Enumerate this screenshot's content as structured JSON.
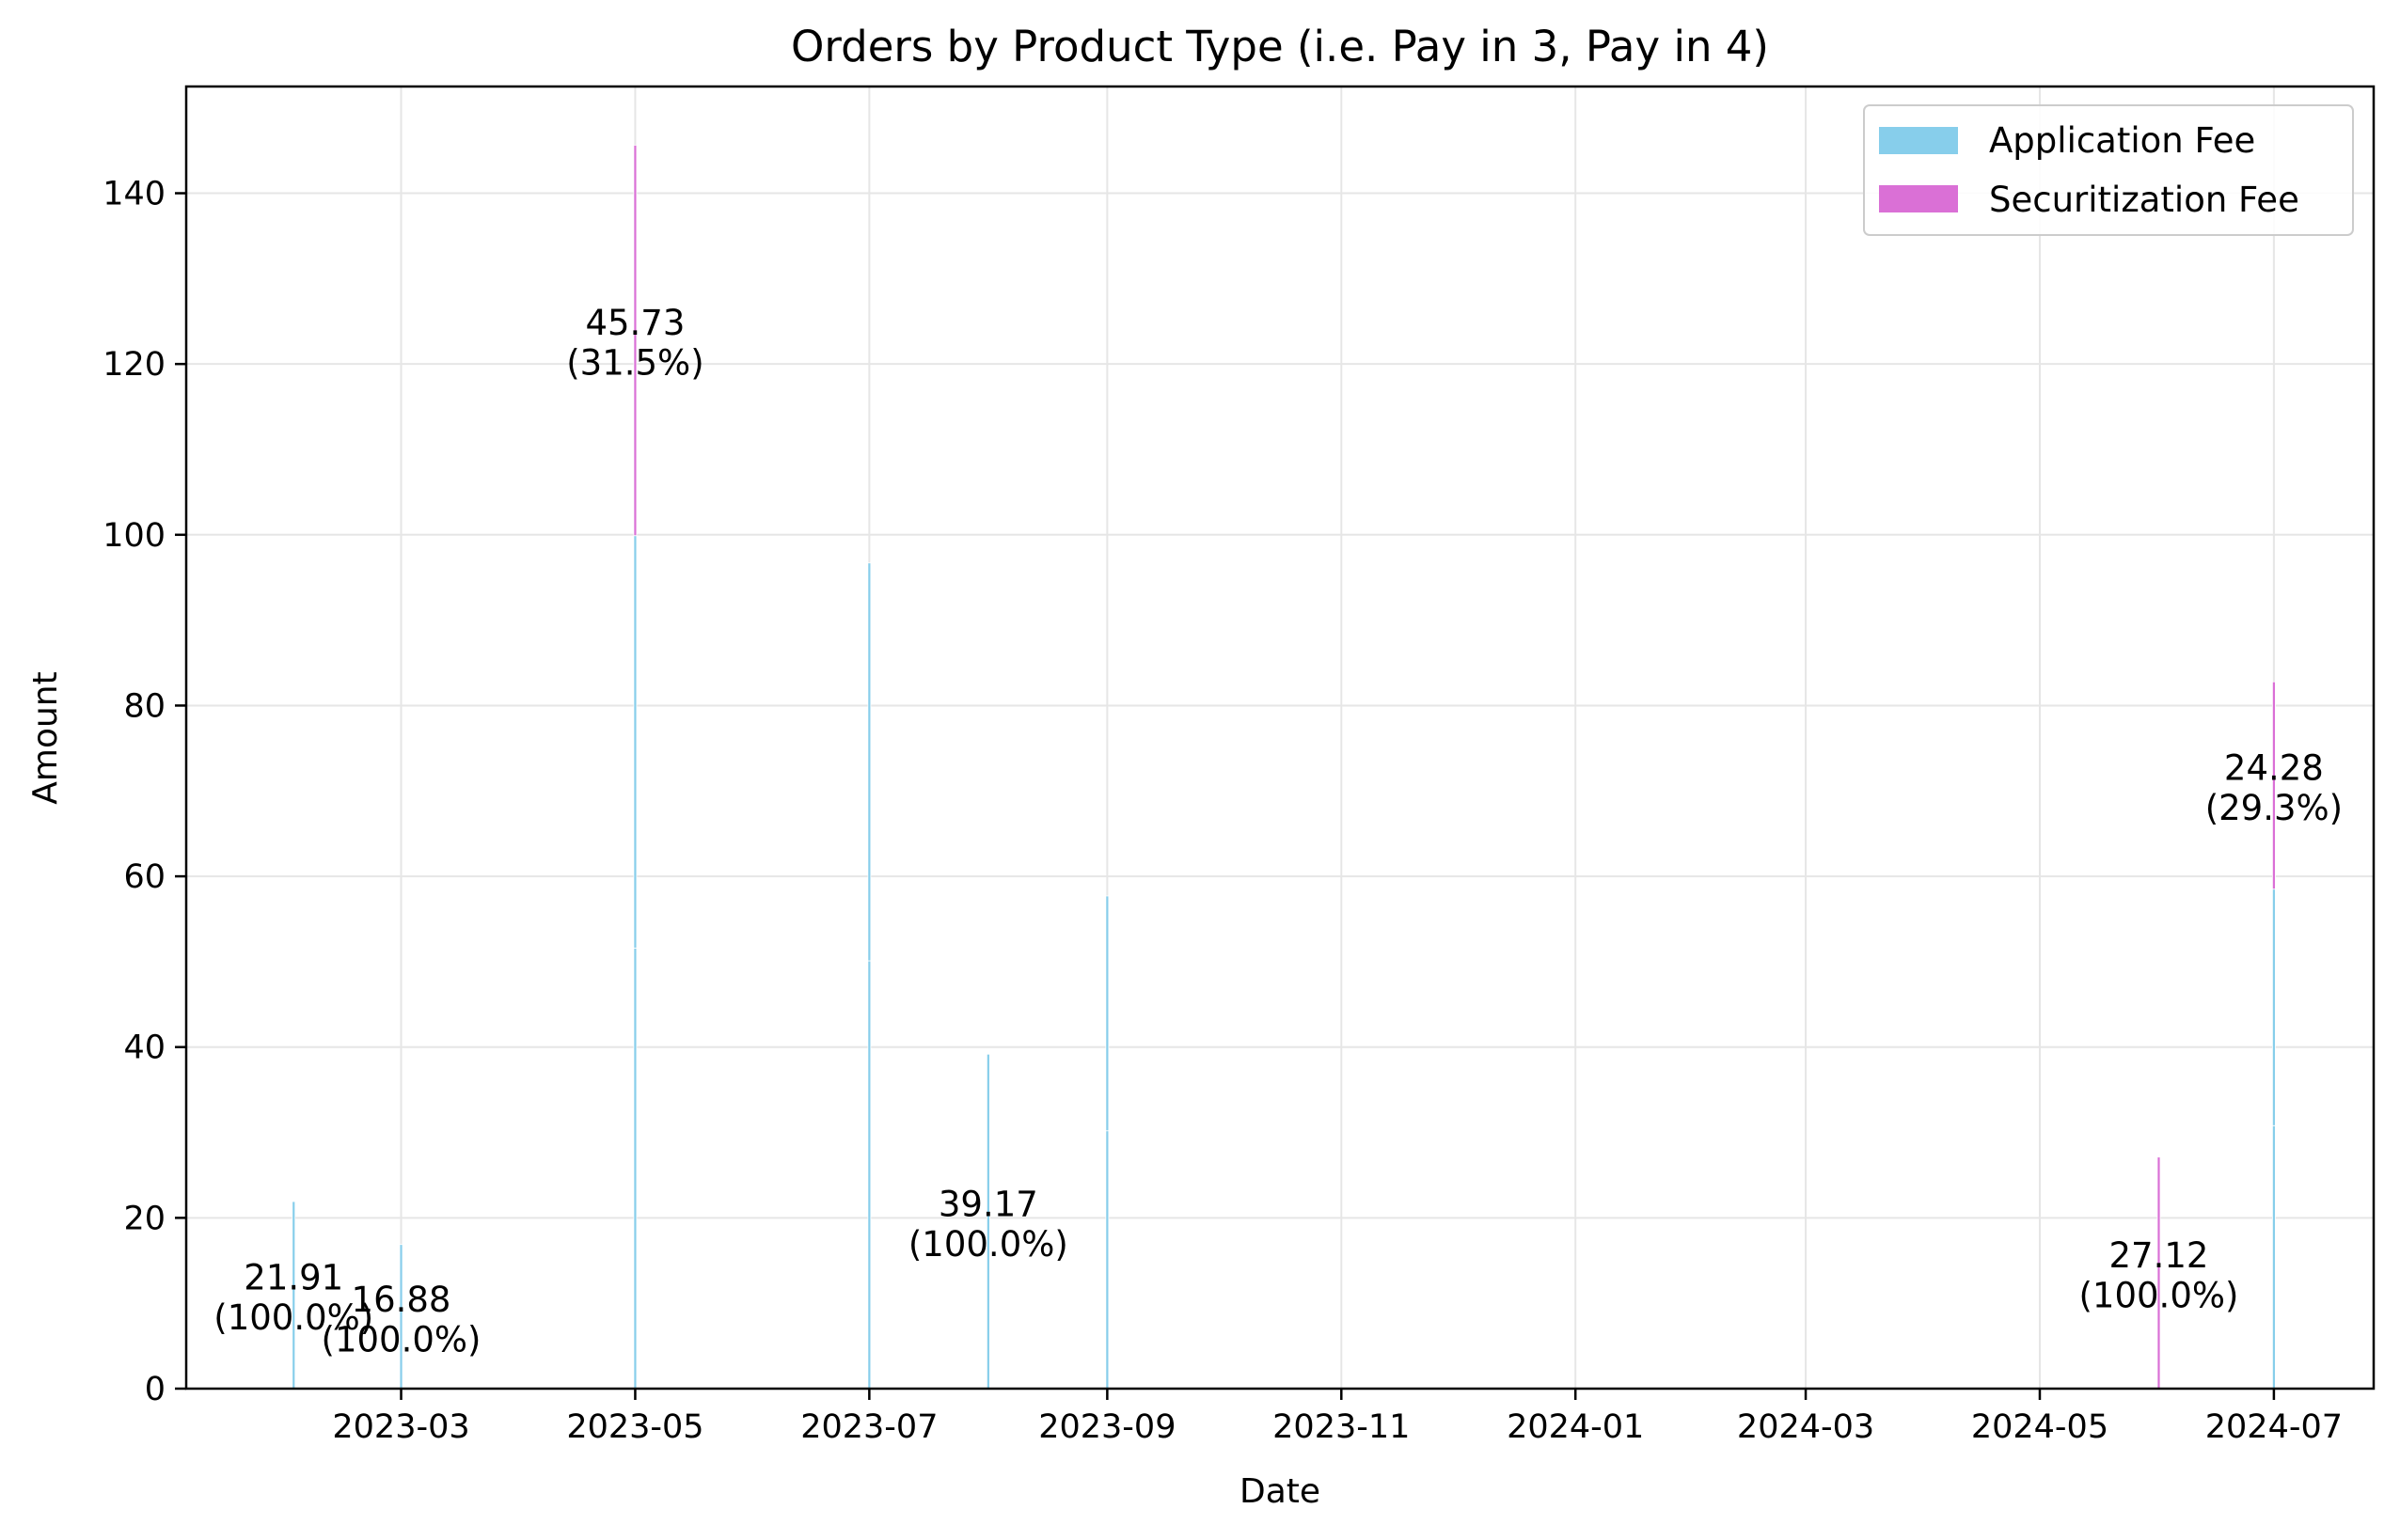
{
  "chart_data": {
    "type": "bar",
    "stacked": true,
    "title": "Orders by Product Type (i.e. Pay in 3, Pay in 4)",
    "xlabel": "Date",
    "ylabel": "Amount",
    "x_axis": {
      "type": "date",
      "range": [
        "2023-01-04",
        "2024-07-27"
      ],
      "ticks": [
        "2023-03-01",
        "2023-05-01",
        "2023-07-01",
        "2023-09-01",
        "2023-11-01",
        "2024-01-01",
        "2024-03-01",
        "2024-05-01",
        "2024-07-01"
      ],
      "tick_labels": [
        "2023-03",
        "2023-05",
        "2023-07",
        "2023-09",
        "2023-11",
        "2024-01",
        "2024-03",
        "2024-05",
        "2024-07"
      ]
    },
    "y_axis": {
      "range": [
        0,
        152.5
      ],
      "ticks": [
        0,
        20,
        40,
        60,
        80,
        100,
        120,
        140
      ],
      "tick_labels": [
        "0",
        "20",
        "40",
        "60",
        "80",
        "100",
        "120",
        "140"
      ]
    },
    "grid": true,
    "legend": {
      "position": "top-right"
    },
    "series": [
      {
        "name": "Application Fee",
        "color": "#87ceeb",
        "segments": [
          {
            "date": "2023-02-01",
            "values": [
              21.91
            ]
          },
          {
            "date": "2023-03-01",
            "values": [
              16.88
            ]
          },
          {
            "date": "2023-05-01",
            "values": [
              51.6,
              48.3
            ]
          },
          {
            "date": "2023-07-01",
            "values": [
              50.1,
              46.6
            ]
          },
          {
            "date": "2023-08-01",
            "values": [
              39.17
            ]
          },
          {
            "date": "2023-09-01",
            "values": [
              30.2,
              27.5
            ]
          },
          {
            "date": "2024-07-01",
            "values": [
              30.8,
              27.7
            ]
          }
        ]
      },
      {
        "name": "Securitization Fee",
        "color": "#da70d6",
        "segments": [
          {
            "date": "2023-05-01",
            "values": [
              45.73
            ]
          },
          {
            "date": "2024-06-01",
            "values": [
              27.12
            ]
          },
          {
            "date": "2024-07-01",
            "values": [
              24.28
            ]
          }
        ]
      }
    ],
    "annotations": [
      {
        "date": "2023-02-01",
        "y": 11.0,
        "lines": [
          "21.91",
          "(100.0%)"
        ]
      },
      {
        "date": "2023-03-01",
        "y": 8.4,
        "lines": [
          "16.88",
          "(100.0%)"
        ]
      },
      {
        "date": "2023-05-01",
        "y": 122.8,
        "lines": [
          "45.73",
          "(31.5%)"
        ]
      },
      {
        "date": "2023-08-01",
        "y": 19.6,
        "lines": [
          "39.17",
          "(100.0%)"
        ]
      },
      {
        "date": "2024-06-01",
        "y": 13.6,
        "lines": [
          "27.12",
          "(100.0%)"
        ]
      },
      {
        "date": "2024-07-01",
        "y": 70.7,
        "lines": [
          "24.28",
          "(29.3%)"
        ]
      }
    ]
  }
}
